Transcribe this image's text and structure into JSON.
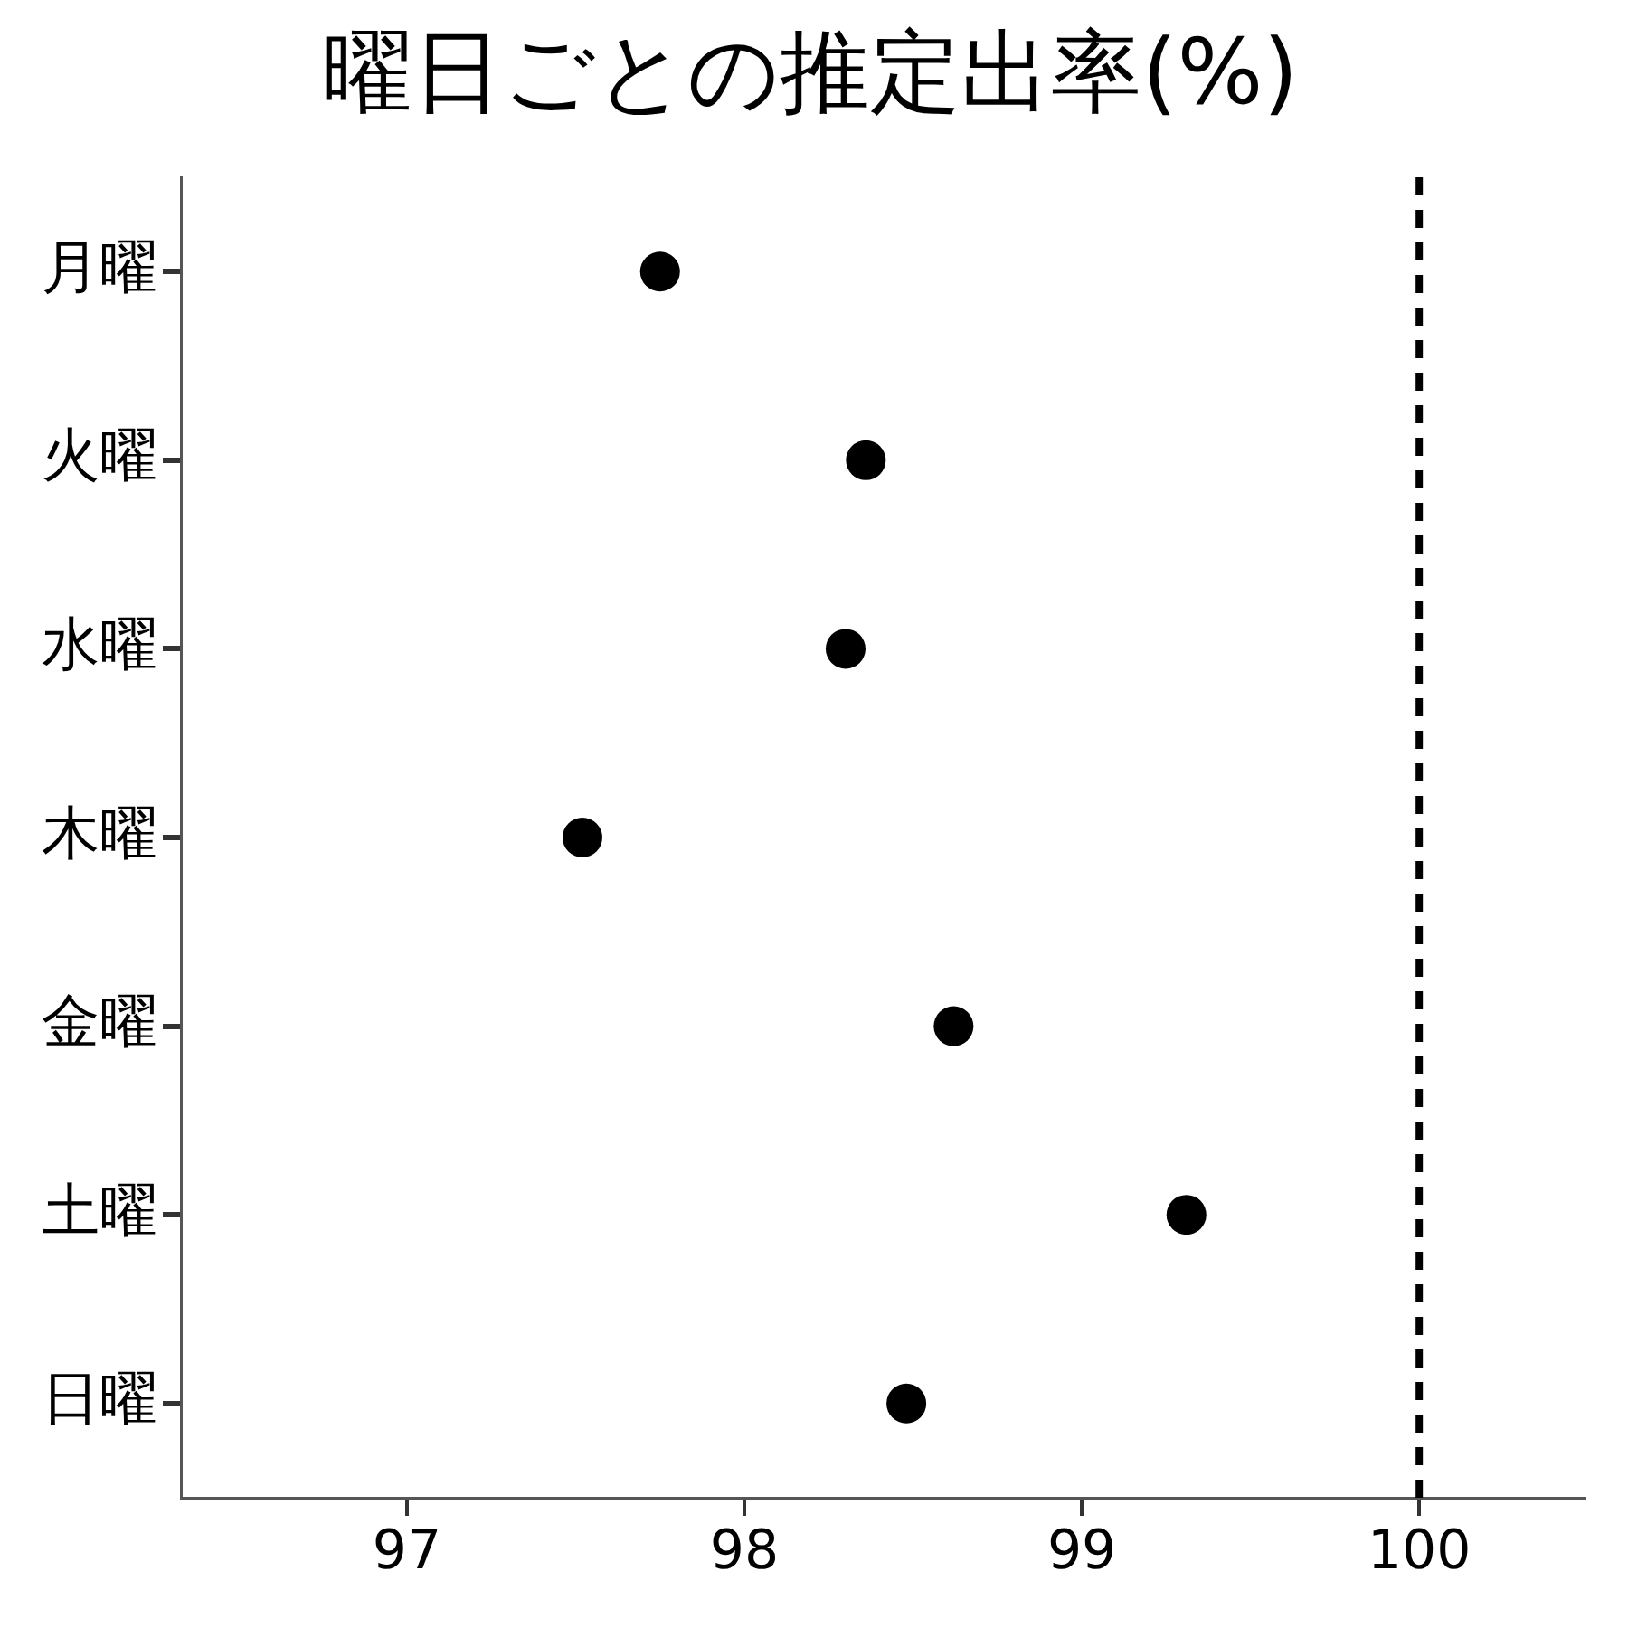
{
  "chart_data": {
    "type": "scatter",
    "title": "曜日ごとの推定出率(%)",
    "orientation": "horizontal",
    "categories": [
      "月曜",
      "火曜",
      "水曜",
      "木曜",
      "金曜",
      "土曜",
      "日曜"
    ],
    "values": [
      97.75,
      98.36,
      98.3,
      97.52,
      98.62,
      99.31,
      98.48
    ],
    "color": "#000000",
    "marker": "circle",
    "xlim": [
      96.33,
      100.49
    ],
    "xticks": [
      97,
      98,
      99,
      100
    ],
    "ref_lines": [
      {
        "axis": "x",
        "value": 100,
        "color": "#000000",
        "line_style": "dashed"
      }
    ]
  }
}
